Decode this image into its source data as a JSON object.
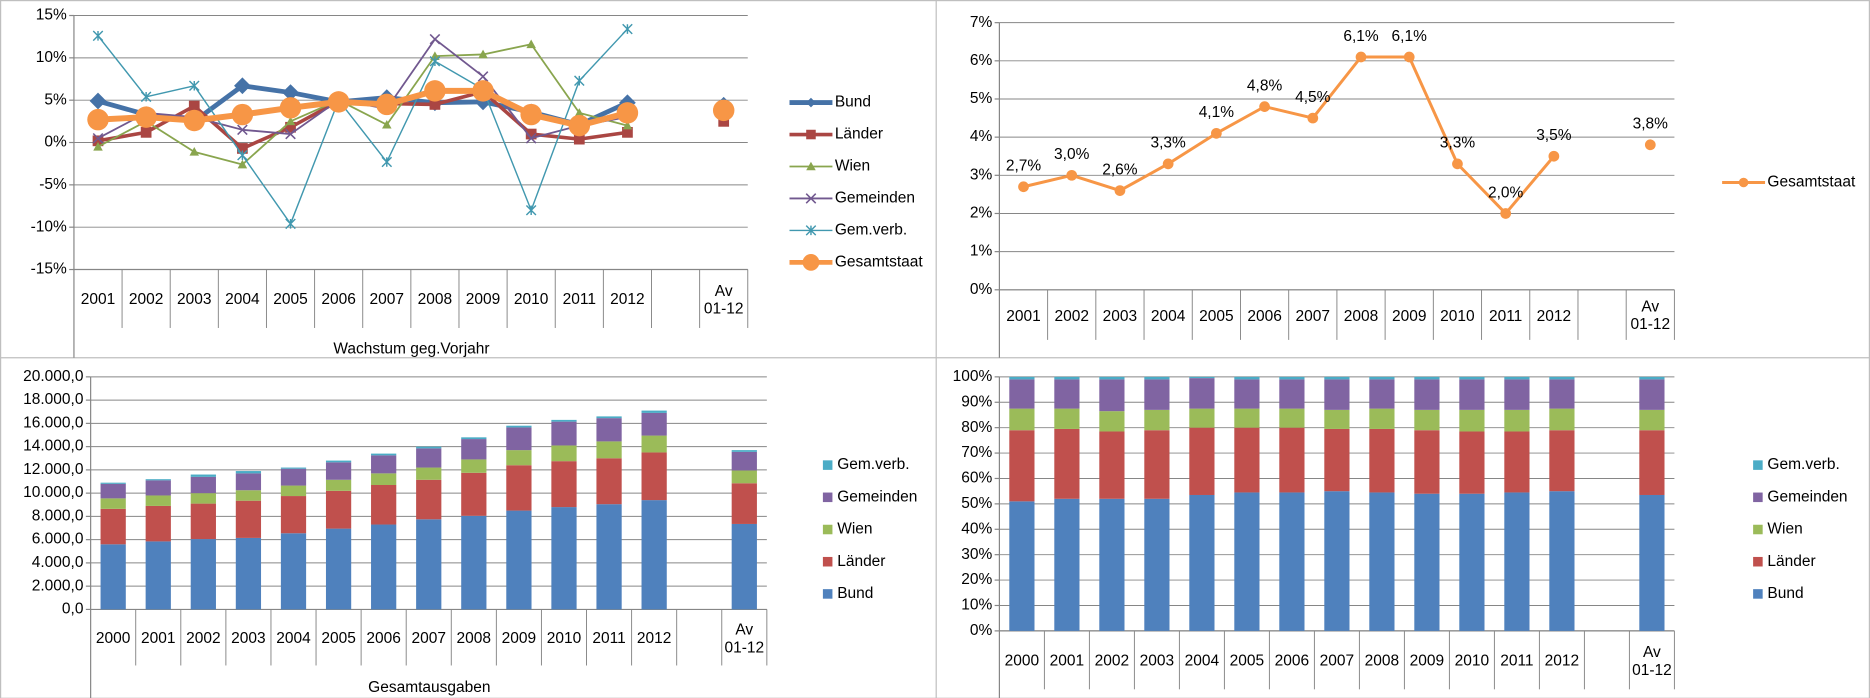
{
  "chart_data": [
    {
      "type": "line",
      "x_title": "Wachstum geg.Vorjahr",
      "categories": [
        "2001",
        "2002",
        "2003",
        "2004",
        "2005",
        "2006",
        "2007",
        "2008",
        "2009",
        "2010",
        "2011",
        "2012",
        null,
        "Av 01-12"
      ],
      "ylim": [
        -15,
        15
      ],
      "yticks": [
        {
          "value": -15,
          "label": "-15%"
        },
        {
          "value": -10,
          "label": "-10%"
        },
        {
          "value": -5,
          "label": "-5%"
        },
        {
          "value": 0,
          "label": "0%"
        },
        {
          "value": 5,
          "label": "5%"
        },
        {
          "value": 10,
          "label": "10%"
        },
        {
          "value": 15,
          "label": "15%"
        }
      ],
      "grid": true,
      "series": [
        {
          "name": "Bund",
          "color": "#4572a7",
          "line_width": 4,
          "marker": "diamond",
          "values": [
            4.9,
            3.3,
            2.5,
            6.7,
            5.9,
            4.8,
            5.3,
            4.7,
            4.8,
            3.6,
            2.1,
            4.7,
            null,
            4.4
          ]
        },
        {
          "name": "Länder",
          "color": "#aa4643",
          "line_width": 3,
          "marker": "square",
          "values": [
            0.2,
            1.2,
            4.3,
            -0.7,
            1.8,
            4.9,
            4.6,
            4.5,
            6.0,
            1.0,
            0.4,
            1.2,
            null,
            2.5
          ]
        },
        {
          "name": "Wien",
          "color": "#89a54e",
          "line_width": 1.5,
          "marker": "triangle",
          "values": [
            -0.5,
            2.5,
            -1.1,
            -2.6,
            2.5,
            5.0,
            2.1,
            10.2,
            10.4,
            11.6,
            3.5,
            2.0,
            null,
            3.9
          ]
        },
        {
          "name": "Gemeinden",
          "color": "#71588f",
          "line_width": 1.5,
          "marker": "x",
          "values": [
            0.5,
            3.5,
            3.0,
            1.5,
            1.0,
            5.0,
            4.0,
            12.2,
            7.8,
            0.5,
            2.0,
            3.0,
            null,
            3.7
          ]
        },
        {
          "name": "Gem.verb.",
          "color": "#4198af",
          "line_width": 1.2,
          "marker": "star",
          "values": [
            12.6,
            5.4,
            6.7,
            -1.5,
            -9.6,
            5.0,
            -2.3,
            9.6,
            6.3,
            -8.0,
            7.3,
            13.4,
            null,
            4.0
          ]
        },
        {
          "name": "Gesamtstaat",
          "color": "#f79646",
          "line_width": 5,
          "marker": "circle",
          "values": [
            2.7,
            3.0,
            2.6,
            3.3,
            4.1,
            4.8,
            4.5,
            6.1,
            6.1,
            3.3,
            2.0,
            3.5,
            null,
            3.8
          ]
        }
      ]
    },
    {
      "type": "line",
      "categories": [
        "2001",
        "2002",
        "2003",
        "2004",
        "2005",
        "2006",
        "2007",
        "2008",
        "2009",
        "2010",
        "2011",
        "2012",
        null,
        "Av 01-12"
      ],
      "ylim": [
        0,
        7
      ],
      "yticks": [
        {
          "value": 0,
          "label": "0%"
        },
        {
          "value": 1,
          "label": "1%"
        },
        {
          "value": 2,
          "label": "2%"
        },
        {
          "value": 3,
          "label": "3%"
        },
        {
          "value": 4,
          "label": "4%"
        },
        {
          "value": 5,
          "label": "5%"
        },
        {
          "value": 6,
          "label": "6%"
        },
        {
          "value": 7,
          "label": "7%"
        }
      ],
      "grid": true,
      "series": [
        {
          "name": "Gesamtstaat",
          "color": "#f79646",
          "line_width": 2.5,
          "marker": "circle",
          "values": [
            2.7,
            3.0,
            2.6,
            3.3,
            4.1,
            4.8,
            4.5,
            6.1,
            6.1,
            3.3,
            2.0,
            3.5,
            null,
            3.8
          ],
          "value_labels": [
            "2,7%",
            "3,0%",
            "2,6%",
            "3,3%",
            "4,1%",
            "4,8%",
            "4,5%",
            "6,1%",
            "6,1%",
            "3,3%",
            "2,0%",
            "3,5%",
            null,
            "3,8%"
          ]
        }
      ]
    },
    {
      "type": "bar",
      "stacked": true,
      "x_title": "Gesamtausgaben",
      "categories": [
        "2000",
        "2001",
        "2002",
        "2003",
        "2004",
        "2005",
        "2006",
        "2007",
        "2008",
        "2009",
        "2010",
        "2011",
        "2012",
        null,
        "Av 01-12"
      ],
      "ylim": [
        0,
        20000
      ],
      "yticks": [
        {
          "value": 0,
          "label": "0,0"
        },
        {
          "value": 2000,
          "label": "2.000,0"
        },
        {
          "value": 4000,
          "label": "4.000,0"
        },
        {
          "value": 6000,
          "label": "6.000,0"
        },
        {
          "value": 8000,
          "label": "8.000,0"
        },
        {
          "value": 10000,
          "label": "10.000,0"
        },
        {
          "value": 12000,
          "label": "12.000,0"
        },
        {
          "value": 14000,
          "label": "14.000,0"
        },
        {
          "value": 16000,
          "label": "16.000,0"
        },
        {
          "value": 18000,
          "label": "18.000,0"
        },
        {
          "value": 20000,
          "label": "20.000,0"
        }
      ],
      "grid": true,
      "series": [
        {
          "name": "Bund",
          "color": "#4f81bd",
          "values": [
            5600,
            5850,
            6050,
            6150,
            6550,
            6950,
            7300,
            7750,
            8050,
            8500,
            8800,
            9050,
            9400,
            null,
            7350
          ]
        },
        {
          "name": "Länder",
          "color": "#c0504d",
          "values": [
            3050,
            3050,
            3050,
            3200,
            3200,
            3250,
            3400,
            3400,
            3700,
            3900,
            3950,
            3950,
            4100,
            null,
            3500
          ]
        },
        {
          "name": "Wien",
          "color": "#9bbb59",
          "values": [
            900,
            900,
            900,
            900,
            900,
            950,
            1000,
            1050,
            1150,
            1300,
            1350,
            1450,
            1450,
            null,
            1100
          ]
        },
        {
          "name": "Gemeinden",
          "color": "#8064a2",
          "values": [
            1250,
            1300,
            1400,
            1450,
            1450,
            1500,
            1550,
            1650,
            1750,
            1950,
            2050,
            2000,
            1950,
            null,
            1600
          ]
        },
        {
          "name": "Gem.verb.",
          "color": "#4bacc6",
          "values": [
            100,
            100,
            200,
            200,
            100,
            150,
            150,
            150,
            150,
            150,
            150,
            150,
            200,
            null,
            150
          ]
        }
      ]
    },
    {
      "type": "bar",
      "stacked": true,
      "categories": [
        "2000",
        "2001",
        "2002",
        "2003",
        "2004",
        "2005",
        "2006",
        "2007",
        "2008",
        "2009",
        "2010",
        "2011",
        "2012",
        null,
        "Av 01-12"
      ],
      "ylim": [
        0,
        100
      ],
      "yticks": [
        {
          "value": 0,
          "label": "0%"
        },
        {
          "value": 10,
          "label": "10%"
        },
        {
          "value": 20,
          "label": "20%"
        },
        {
          "value": 30,
          "label": "30%"
        },
        {
          "value": 40,
          "label": "40%"
        },
        {
          "value": 50,
          "label": "50%"
        },
        {
          "value": 60,
          "label": "60%"
        },
        {
          "value": 70,
          "label": "70%"
        },
        {
          "value": 80,
          "label": "80%"
        },
        {
          "value": 90,
          "label": "90%"
        },
        {
          "value": 100,
          "label": "100%"
        }
      ],
      "grid": true,
      "series": [
        {
          "name": "Bund",
          "color": "#4f81bd",
          "values": [
            51,
            52,
            52,
            52,
            53.5,
            54.5,
            54.5,
            55,
            54.5,
            54,
            54,
            54.5,
            55,
            null,
            53.5
          ]
        },
        {
          "name": "Länder",
          "color": "#c0504d",
          "values": [
            28,
            27.5,
            26.5,
            27,
            26.5,
            25.5,
            25.5,
            24.5,
            25,
            25,
            24.5,
            24,
            24,
            null,
            25.5
          ]
        },
        {
          "name": "Wien",
          "color": "#9bbb59",
          "values": [
            8.5,
            8,
            8,
            8,
            7.5,
            7.5,
            7.5,
            7.5,
            8,
            8,
            8.5,
            8.5,
            8.5,
            null,
            8
          ]
        },
        {
          "name": "Gemeinden",
          "color": "#8064a2",
          "values": [
            11.5,
            11.5,
            12.5,
            12,
            12,
            11.5,
            11.5,
            12,
            11.5,
            12,
            12,
            12,
            11.5,
            null,
            12
          ]
        },
        {
          "name": "Gem.verb.",
          "color": "#4bacc6",
          "values": [
            1,
            1,
            1,
            1,
            0.5,
            1,
            1,
            1,
            1,
            1,
            1,
            1,
            1,
            null,
            1
          ]
        }
      ]
    }
  ]
}
